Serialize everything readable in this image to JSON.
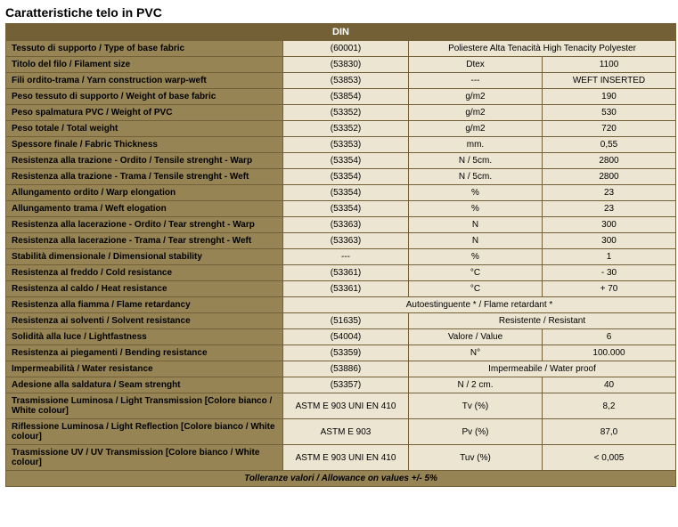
{
  "title": "Caratteristiche telo in PVC",
  "header": "DIN",
  "footer": "Tolleranze valori / Allowance on values +/- 5%",
  "rows": [
    {
      "label": "Tessuto di supporto / Type of base fabric",
      "c2": "(60001)",
      "merged": true,
      "c3": "Poliestere Alta Tenacità High Tenacity Polyester"
    },
    {
      "label": "Titolo del filo / Filament size",
      "c2": "(53830)",
      "c3": "Dtex",
      "c4": "1100"
    },
    {
      "label": "Fili ordito-trama / Yarn construction warp-weft",
      "c2": "(53853)",
      "c3": "---",
      "c4": "WEFT INSERTED"
    },
    {
      "label": "Peso tessuto di supporto / Weight of base fabric",
      "c2": "(53854)",
      "c3": "g/m2",
      "c4": "190"
    },
    {
      "label": "Peso spalmatura PVC / Weight of PVC",
      "c2": "(53352)",
      "c3": "g/m2",
      "c4": "530"
    },
    {
      "label": "Peso totale / Total weight",
      "c2": "(53352)",
      "c3": "g/m2",
      "c4": "720"
    },
    {
      "label": "Spessore finale / Fabric Thickness",
      "c2": "(53353)",
      "c3": "mm.",
      "c4": "0,55"
    },
    {
      "label": "Resistenza alla trazione - Ordito / Tensile strenght - Warp",
      "c2": "(53354)",
      "c3": "N / 5cm.",
      "c4": "2800"
    },
    {
      "label": "Resistenza alla trazione - Trama / Tensile strenght - Weft",
      "c2": "(53354)",
      "c3": "N / 5cm.",
      "c4": "2800"
    },
    {
      "label": "Allungamento ordito / Warp elongation",
      "c2": "(53354)",
      "c3": "%",
      "c4": "23"
    },
    {
      "label": "Allungamento trama / Weft elogation",
      "c2": "(53354)",
      "c3": "%",
      "c4": "23"
    },
    {
      "label": "Resistenza alla lacerazione - Ordito / Tear strenght - Warp",
      "c2": "(53363)",
      "c3": "N",
      "c4": "300"
    },
    {
      "label": "Resistenza alla lacerazione - Trama / Tear strenght - Weft",
      "c2": "(53363)",
      "c3": "N",
      "c4": "300"
    },
    {
      "label": "Stabilità dimensionale / Dimensional stability",
      "c2": "---",
      "c3": "%",
      "c4": "1"
    },
    {
      "label": "Resistenza al freddo / Cold resistance",
      "c2": "(53361)",
      "c3": "°C",
      "c4": "- 30"
    },
    {
      "label": "Resistenza al caldo / Heat resistance",
      "c2": "(53361)",
      "c3": "°C",
      "c4": "+ 70"
    },
    {
      "label": "Resistenza alla fiamma / Flame retardancy",
      "merged3": true,
      "c2": "Autoestinguente * / Flame retardant *"
    },
    {
      "label": "Resistenza ai solventi / Solvent resistance",
      "c2": "(51635)",
      "merged": true,
      "c3": "Resistente / Resistant"
    },
    {
      "label": "Solidità alla luce / Lightfastness",
      "c2": "(54004)",
      "c3": "Valore / Value",
      "c4": "6"
    },
    {
      "label": "Resistenza ai piegamenti / Bending resistance",
      "c2": "(53359)",
      "c3": "N°",
      "c4": "100.000"
    },
    {
      "label": "Impermeabilità / Water resistance",
      "c2": "(53886)",
      "merged": true,
      "c3": "Impermeabile / Water proof"
    },
    {
      "label": "Adesione alla saldatura / Seam strenght",
      "c2": "(53357)",
      "c3": "N / 2 cm.",
      "c4": "40"
    },
    {
      "label": "Trasmissione Luminosa / Light Transmission [Colore bianco / White colour]",
      "c2": "ASTM E 903 UNI EN 410",
      "c3": "Tv (%)",
      "c4": "8,2"
    },
    {
      "label": "Riflessione Luminosa / Light Reflection [Colore bianco / White colour]",
      "c2": "ASTM E 903",
      "c3": "Pv (%)",
      "c4": "87,0"
    },
    {
      "label": "Trasmissione UV / UV Transmission [Colore bianco / White colour]",
      "c2": "ASTM E 903 UNI EN 410",
      "c3": "Tuv (%)",
      "c4": "< 0,005"
    }
  ]
}
